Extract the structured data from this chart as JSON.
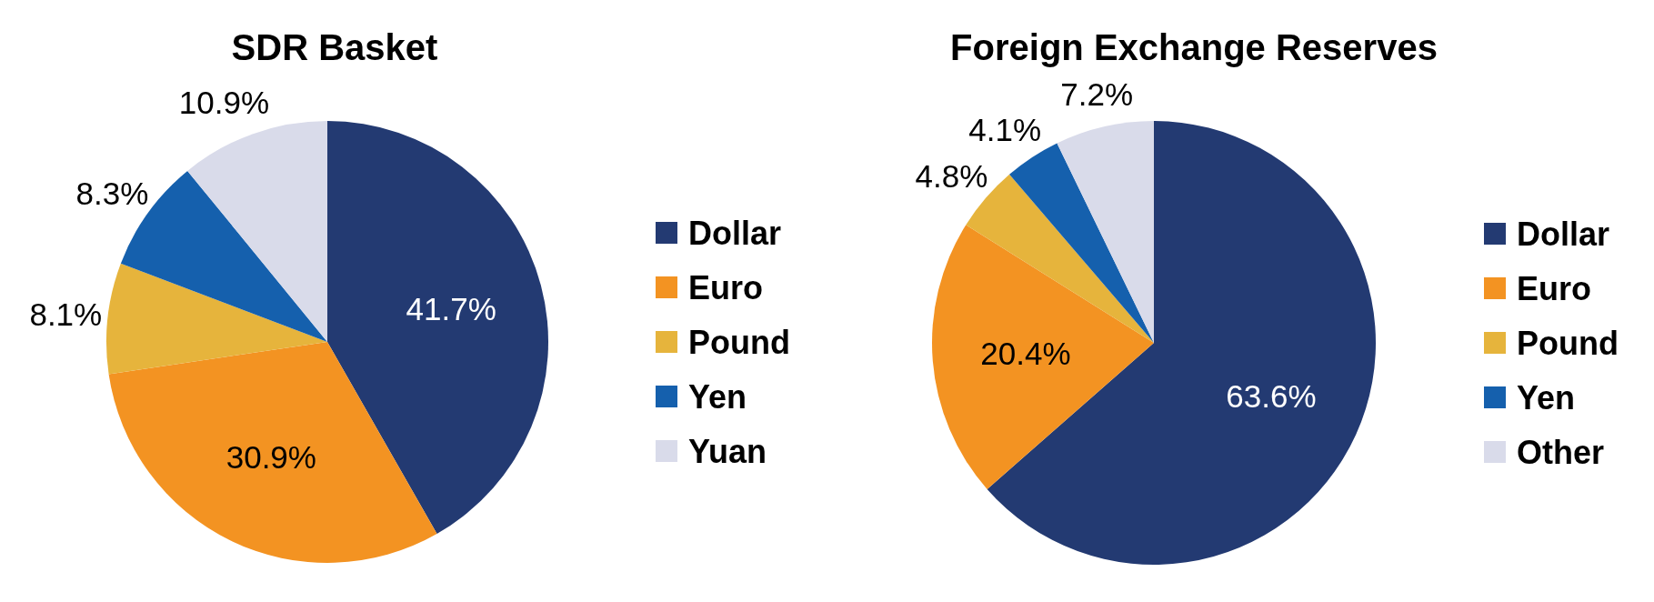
{
  "chart_data": [
    {
      "type": "pie",
      "title": "SDR Basket",
      "categories": [
        "Dollar",
        "Euro",
        "Pound",
        "Yen",
        "Yuan"
      ],
      "values": [
        41.7,
        30.9,
        8.1,
        8.3,
        10.9
      ],
      "value_labels": [
        "41.7%",
        "30.9%",
        "8.1%",
        "8.3%",
        "10.9%"
      ],
      "colors": [
        "#233a72",
        "#f39322",
        "#e6b43c",
        "#1560ad",
        "#d9dbea"
      ],
      "legend": "right"
    },
    {
      "type": "pie",
      "title": "Foreign Exchange Reserves",
      "categories": [
        "Dollar",
        "Euro",
        "Pound",
        "Yen",
        "Other"
      ],
      "values": [
        63.6,
        20.4,
        4.8,
        4.1,
        7.2
      ],
      "value_labels": [
        "63.6%",
        "20.4%",
        "4.8%",
        "4.1%",
        "7.2%"
      ],
      "colors": [
        "#233a72",
        "#f39322",
        "#e6b43c",
        "#1560ad",
        "#d9dbea"
      ],
      "legend": "right"
    }
  ]
}
